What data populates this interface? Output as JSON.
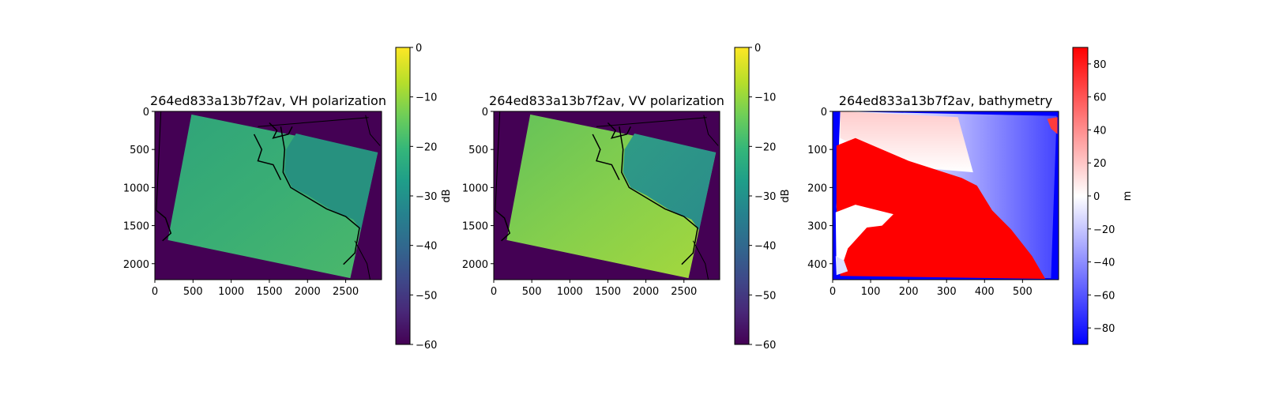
{
  "chart_data": [
    {
      "type": "heatmap",
      "title": "264ed833a13b7f2av, VH polarization",
      "xticks": [
        0,
        500,
        1000,
        1500,
        2000,
        2500
      ],
      "yticks": [
        0,
        500,
        1000,
        1500,
        2000
      ],
      "xlim": [
        0,
        2970
      ],
      "ylim": [
        2210,
        0
      ],
      "colormap": "viridis",
      "colorbar": {
        "label": "dB",
        "range": [
          -60,
          0
        ],
        "ticks": [
          0,
          -10,
          -20,
          -30,
          -40,
          -50,
          -60
        ]
      }
    },
    {
      "type": "heatmap",
      "title": "264ed833a13b7f2av, VV polarization",
      "xticks": [
        0,
        500,
        1000,
        1500,
        2000,
        2500
      ],
      "yticks": [
        0,
        500,
        1000,
        1500,
        2000
      ],
      "xlim": [
        0,
        2970
      ],
      "ylim": [
        2210,
        0
      ],
      "colormap": "viridis",
      "colorbar": {
        "label": "dB",
        "range": [
          -60,
          0
        ],
        "ticks": [
          0,
          -10,
          -20,
          -30,
          -40,
          -50,
          -60
        ]
      }
    },
    {
      "type": "heatmap",
      "title": "264ed833a13b7f2av, bathymetry",
      "xticks": [
        0,
        100,
        200,
        300,
        400,
        500
      ],
      "yticks": [
        0,
        100,
        200,
        300,
        400
      ],
      "xlim": [
        0,
        595
      ],
      "ylim": [
        442,
        0
      ],
      "colormap": "bwr",
      "colorbar": {
        "label": "m",
        "range": [
          -90,
          90
        ],
        "ticks": [
          80,
          60,
          40,
          20,
          0,
          -20,
          -40,
          -60,
          -80
        ]
      }
    }
  ],
  "colors": {
    "viridis": [
      "#440154",
      "#482878",
      "#3e4989",
      "#31688e",
      "#26828e",
      "#1f9e89",
      "#35b779",
      "#6ece58",
      "#b5de2b",
      "#fde725"
    ],
    "bwr": [
      "#0000ff",
      "#ffffff",
      "#ff0000"
    ],
    "swath_vh": "#2a9e7e",
    "swath_vv": "#5cbf60",
    "background_sar": "#440154",
    "coastline": "#000000"
  }
}
